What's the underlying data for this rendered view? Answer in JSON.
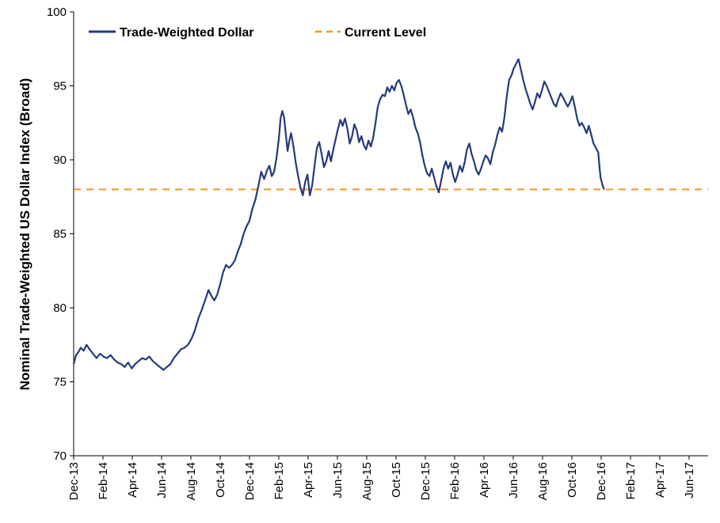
{
  "chart_data": {
    "type": "line",
    "title": "",
    "xlabel": "",
    "ylabel": "Nominal Trade-Weighted US Dollar Index (Broad)",
    "ylim": [
      70,
      100
    ],
    "yticks": [
      70,
      75,
      80,
      85,
      90,
      95,
      100
    ],
    "x_categories": [
      "Dec-13",
      "Feb-14",
      "Apr-14",
      "Jun-14",
      "Aug-14",
      "Oct-14",
      "Dec-14",
      "Feb-15",
      "Apr-15",
      "Jun-15",
      "Aug-15",
      "Oct-15",
      "Dec-15",
      "Feb-16",
      "Apr-16",
      "Jun-16",
      "Aug-16",
      "Oct-16",
      "Dec-16",
      "Feb-17",
      "Apr-17",
      "Jun-17"
    ],
    "legend_position": "top-left",
    "grid": false,
    "colors": {
      "series": "#253A7A",
      "reference": "#F39321"
    },
    "series": [
      {
        "name": "Trade-Weighted Dollar",
        "points": [
          [
            0,
            76.2
          ],
          [
            0.08,
            76.8
          ],
          [
            0.16,
            77.0
          ],
          [
            0.24,
            77.3
          ],
          [
            0.34,
            77.1
          ],
          [
            0.44,
            77.5
          ],
          [
            0.54,
            77.2
          ],
          [
            0.66,
            76.9
          ],
          [
            0.78,
            76.6
          ],
          [
            0.9,
            76.9
          ],
          [
            1.02,
            76.7
          ],
          [
            1.14,
            76.6
          ],
          [
            1.26,
            76.8
          ],
          [
            1.38,
            76.5
          ],
          [
            1.5,
            76.3
          ],
          [
            1.62,
            76.2
          ],
          [
            1.74,
            76.0
          ],
          [
            1.86,
            76.3
          ],
          [
            1.98,
            75.9
          ],
          [
            2.1,
            76.2
          ],
          [
            2.22,
            76.4
          ],
          [
            2.34,
            76.6
          ],
          [
            2.46,
            76.5
          ],
          [
            2.58,
            76.7
          ],
          [
            2.7,
            76.4
          ],
          [
            2.82,
            76.2
          ],
          [
            2.94,
            76.0
          ],
          [
            3.06,
            75.8
          ],
          [
            3.18,
            76.0
          ],
          [
            3.3,
            76.2
          ],
          [
            3.42,
            76.6
          ],
          [
            3.54,
            76.9
          ],
          [
            3.66,
            77.2
          ],
          [
            3.78,
            77.3
          ],
          [
            3.9,
            77.5
          ],
          [
            4.02,
            77.9
          ],
          [
            4.14,
            78.5
          ],
          [
            4.26,
            79.3
          ],
          [
            4.38,
            79.9
          ],
          [
            4.5,
            80.6
          ],
          [
            4.6,
            81.2
          ],
          [
            4.7,
            80.8
          ],
          [
            4.8,
            80.5
          ],
          [
            4.9,
            80.9
          ],
          [
            5.0,
            81.6
          ],
          [
            5.1,
            82.4
          ],
          [
            5.2,
            82.9
          ],
          [
            5.3,
            82.7
          ],
          [
            5.4,
            82.9
          ],
          [
            5.5,
            83.2
          ],
          [
            5.6,
            83.8
          ],
          [
            5.7,
            84.3
          ],
          [
            5.8,
            85.0
          ],
          [
            5.9,
            85.5
          ],
          [
            6.0,
            85.9
          ],
          [
            6.1,
            86.7
          ],
          [
            6.2,
            87.3
          ],
          [
            6.3,
            88.2
          ],
          [
            6.4,
            89.2
          ],
          [
            6.5,
            88.7
          ],
          [
            6.6,
            89.3
          ],
          [
            6.68,
            89.6
          ],
          [
            6.76,
            88.9
          ],
          [
            6.84,
            89.2
          ],
          [
            6.92,
            90.1
          ],
          [
            7.0,
            91.4
          ],
          [
            7.06,
            92.8
          ],
          [
            7.12,
            93.3
          ],
          [
            7.18,
            92.9
          ],
          [
            7.24,
            91.7
          ],
          [
            7.3,
            90.6
          ],
          [
            7.36,
            91.3
          ],
          [
            7.42,
            91.8
          ],
          [
            7.5,
            90.9
          ],
          [
            7.58,
            89.8
          ],
          [
            7.66,
            88.9
          ],
          [
            7.74,
            88.1
          ],
          [
            7.82,
            87.6
          ],
          [
            7.9,
            88.5
          ],
          [
            7.98,
            89.0
          ],
          [
            8.06,
            87.6
          ],
          [
            8.14,
            88.3
          ],
          [
            8.22,
            89.6
          ],
          [
            8.3,
            90.8
          ],
          [
            8.38,
            91.2
          ],
          [
            8.46,
            90.4
          ],
          [
            8.54,
            89.5
          ],
          [
            8.62,
            89.9
          ],
          [
            8.7,
            90.6
          ],
          [
            8.78,
            89.9
          ],
          [
            8.86,
            90.7
          ],
          [
            8.94,
            91.4
          ],
          [
            9.02,
            92.1
          ],
          [
            9.1,
            92.7
          ],
          [
            9.18,
            92.3
          ],
          [
            9.26,
            92.8
          ],
          [
            9.34,
            92.1
          ],
          [
            9.42,
            91.1
          ],
          [
            9.5,
            91.6
          ],
          [
            9.58,
            92.4
          ],
          [
            9.66,
            92.0
          ],
          [
            9.74,
            91.2
          ],
          [
            9.82,
            91.6
          ],
          [
            9.9,
            91.0
          ],
          [
            9.98,
            90.7
          ],
          [
            10.06,
            91.3
          ],
          [
            10.14,
            90.9
          ],
          [
            10.22,
            91.5
          ],
          [
            10.3,
            92.5
          ],
          [
            10.38,
            93.6
          ],
          [
            10.46,
            94.1
          ],
          [
            10.54,
            94.4
          ],
          [
            10.62,
            94.3
          ],
          [
            10.7,
            94.9
          ],
          [
            10.78,
            94.6
          ],
          [
            10.86,
            95.0
          ],
          [
            10.94,
            94.7
          ],
          [
            11.02,
            95.2
          ],
          [
            11.1,
            95.4
          ],
          [
            11.18,
            95.0
          ],
          [
            11.26,
            94.4
          ],
          [
            11.34,
            93.7
          ],
          [
            11.42,
            93.1
          ],
          [
            11.5,
            93.4
          ],
          [
            11.58,
            92.9
          ],
          [
            11.66,
            92.2
          ],
          [
            11.74,
            91.8
          ],
          [
            11.82,
            91.2
          ],
          [
            11.9,
            90.3
          ],
          [
            11.98,
            89.6
          ],
          [
            12.06,
            89.1
          ],
          [
            12.14,
            88.9
          ],
          [
            12.22,
            89.4
          ],
          [
            12.3,
            88.8
          ],
          [
            12.38,
            88.2
          ],
          [
            12.46,
            87.8
          ],
          [
            12.54,
            88.6
          ],
          [
            12.62,
            89.4
          ],
          [
            12.7,
            89.9
          ],
          [
            12.78,
            89.4
          ],
          [
            12.86,
            89.8
          ],
          [
            12.94,
            89.0
          ],
          [
            13.02,
            88.5
          ],
          [
            13.1,
            89.0
          ],
          [
            13.18,
            89.6
          ],
          [
            13.26,
            89.2
          ],
          [
            13.34,
            89.8
          ],
          [
            13.42,
            90.7
          ],
          [
            13.5,
            91.1
          ],
          [
            13.58,
            90.4
          ],
          [
            13.66,
            89.9
          ],
          [
            13.74,
            89.3
          ],
          [
            13.82,
            89.0
          ],
          [
            13.9,
            89.4
          ],
          [
            13.98,
            89.9
          ],
          [
            14.06,
            90.3
          ],
          [
            14.14,
            90.1
          ],
          [
            14.22,
            89.7
          ],
          [
            14.3,
            90.5
          ],
          [
            14.38,
            91.0
          ],
          [
            14.46,
            91.7
          ],
          [
            14.54,
            92.2
          ],
          [
            14.62,
            91.9
          ],
          [
            14.7,
            92.9
          ],
          [
            14.78,
            94.3
          ],
          [
            14.86,
            95.4
          ],
          [
            14.94,
            95.7
          ],
          [
            15.02,
            96.2
          ],
          [
            15.1,
            96.5
          ],
          [
            15.18,
            96.8
          ],
          [
            15.26,
            96.1
          ],
          [
            15.34,
            95.4
          ],
          [
            15.42,
            94.8
          ],
          [
            15.5,
            94.3
          ],
          [
            15.58,
            93.8
          ],
          [
            15.66,
            93.4
          ],
          [
            15.74,
            93.9
          ],
          [
            15.82,
            94.5
          ],
          [
            15.9,
            94.2
          ],
          [
            15.98,
            94.7
          ],
          [
            16.06,
            95.3
          ],
          [
            16.14,
            95.0
          ],
          [
            16.22,
            94.6
          ],
          [
            16.3,
            94.2
          ],
          [
            16.38,
            93.8
          ],
          [
            16.46,
            93.6
          ],
          [
            16.54,
            94.1
          ],
          [
            16.62,
            94.5
          ],
          [
            16.7,
            94.2
          ],
          [
            16.78,
            93.9
          ],
          [
            16.86,
            93.6
          ],
          [
            16.94,
            93.9
          ],
          [
            17.02,
            94.3
          ],
          [
            17.1,
            93.6
          ],
          [
            17.18,
            92.8
          ],
          [
            17.26,
            92.3
          ],
          [
            17.34,
            92.5
          ],
          [
            17.42,
            92.2
          ],
          [
            17.5,
            91.8
          ],
          [
            17.58,
            92.3
          ],
          [
            17.66,
            91.7
          ],
          [
            17.74,
            91.1
          ],
          [
            17.82,
            90.8
          ],
          [
            17.9,
            90.5
          ],
          [
            17.94,
            89.6
          ],
          [
            17.98,
            88.8
          ],
          [
            18.02,
            88.5
          ],
          [
            18.06,
            88.2
          ],
          [
            18.1,
            88.0
          ]
        ]
      },
      {
        "name": "Current Level",
        "value": 88.0
      }
    ]
  }
}
